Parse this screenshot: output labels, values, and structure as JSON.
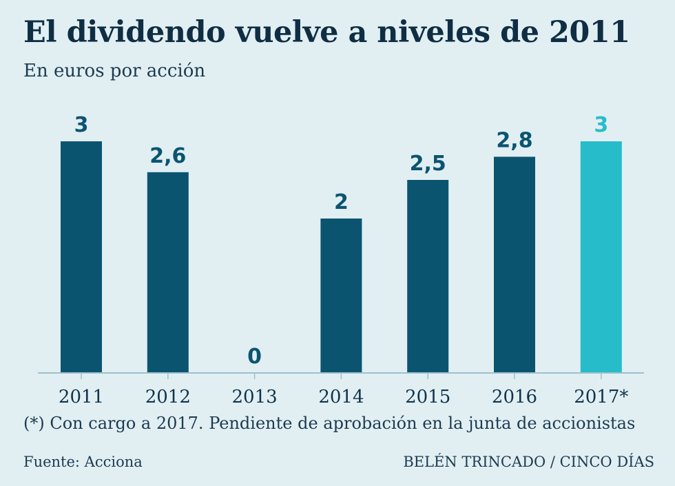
{
  "chart_data": {
    "type": "bar",
    "title": "El dividendo vuelve a niveles de 2011",
    "subtitle": "En euros por acción",
    "categories": [
      "2011",
      "2012",
      "2013",
      "2014",
      "2015",
      "2016",
      "2017*"
    ],
    "values": [
      3,
      2.6,
      0,
      2,
      2.5,
      2.8,
      3
    ],
    "value_labels": [
      "3",
      "2,6",
      "0",
      "2",
      "2,5",
      "2,8",
      "3"
    ],
    "highlight_index": 6,
    "ylim": [
      0,
      3
    ],
    "grid": false,
    "xlabel": "",
    "ylabel": "",
    "colors": {
      "bar": "#0b5470",
      "highlight": "#27bcc9",
      "axis": "#9fbfcb"
    }
  },
  "footnote": "(*) Con cargo a 2017. Pendiente de aprobación en la junta de accionistas",
  "source": "Fuente: Acciona",
  "credit": "BELÉN TRINCADO / CINCO DÍAS"
}
